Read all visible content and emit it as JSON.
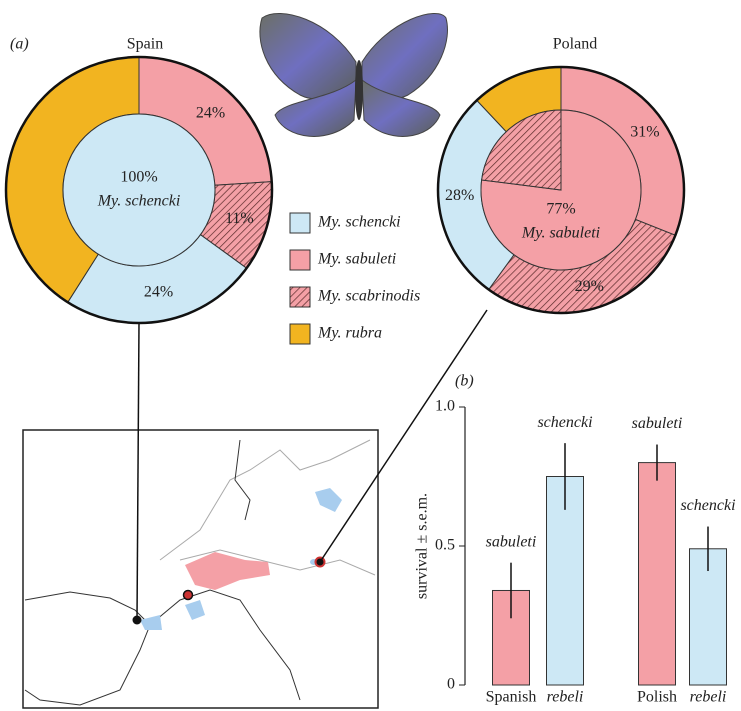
{
  "legend": {
    "names": [
      "My. schencki",
      "My. sabuleti",
      "My. scabrinodis",
      "My. rubra"
    ],
    "colors": [
      "#cde8f5",
      "#f4a0a6",
      "#f4a0a6",
      "#f2b420"
    ],
    "hatch": [
      false,
      false,
      true,
      false
    ]
  },
  "chart_data": [
    {
      "type": "donut",
      "panel_label": "(a)",
      "title": "Spain",
      "outer": {
        "values": [
          24,
          24,
          11,
          41
        ],
        "value_labels": [
          "24%",
          "24%",
          "11%",
          null
        ]
      },
      "inner": {
        "values": [
          100,
          0,
          0,
          0
        ],
        "value_labels": [
          "100%",
          null,
          null,
          null
        ]
      },
      "center_name": "My. schencki"
    },
    {
      "type": "donut",
      "title": "Poland",
      "outer": {
        "values": [
          28,
          31,
          29,
          12
        ],
        "value_labels": [
          "28%",
          "31%",
          "29%",
          null
        ]
      },
      "inner": {
        "values": [
          0,
          77,
          23,
          0
        ],
        "value_labels": [
          null,
          "77%",
          null,
          null
        ]
      },
      "center_name": "My. sabuleti"
    },
    {
      "type": "bar",
      "panel_label": "(b)",
      "ylabel": "survival ± s.e.m.",
      "categories": [
        "Spanish",
        "rebeli",
        "Polish",
        "rebeli"
      ],
      "values": [
        0.34,
        0.75,
        0.8,
        0.49
      ],
      "errors": [
        0.1,
        0.12,
        0.065,
        0.08
      ],
      "bar_labels": [
        "sabuleti",
        "schencki",
        "sabuleti",
        "schencki"
      ],
      "colors": [
        "#f4a0a6",
        "#cde8f5",
        "#f4a0a6",
        "#cde8f5"
      ],
      "ylim": [
        0,
        1
      ],
      "yticks": [
        0,
        0.5,
        {
          "value": 1,
          "label": "1.0"
        }
      ]
    }
  ]
}
